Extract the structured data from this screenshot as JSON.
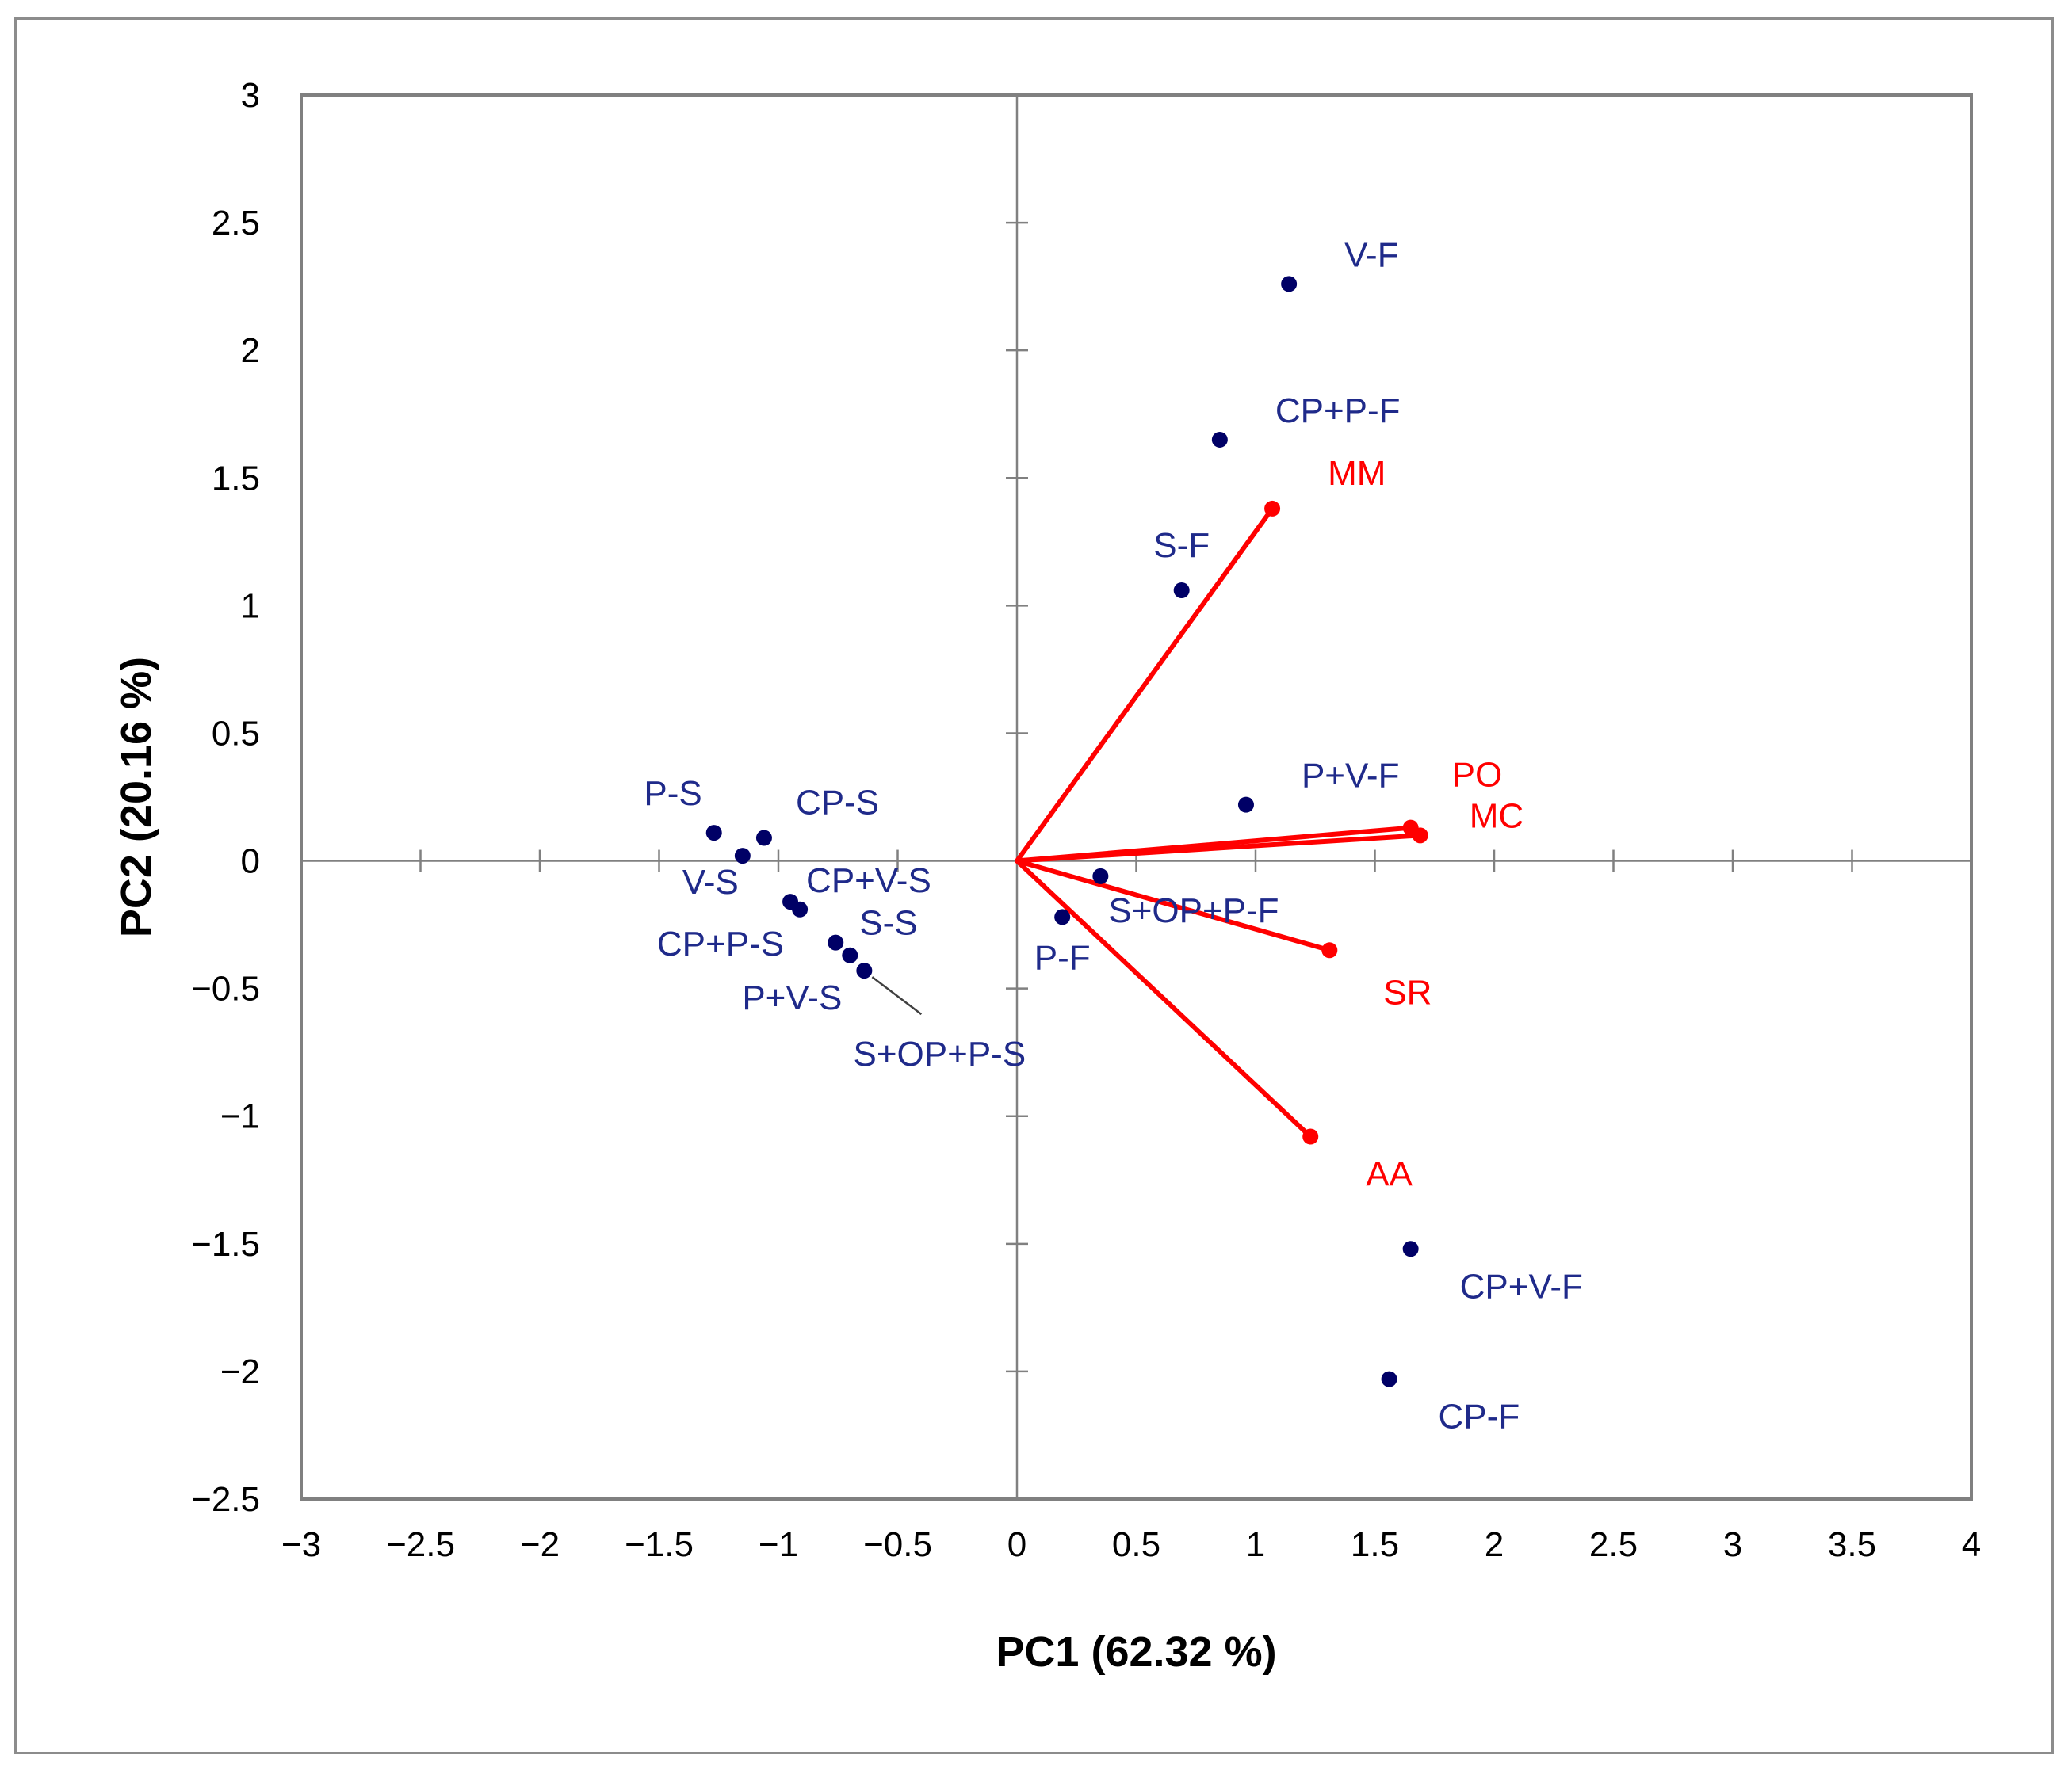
{
  "chart_data": {
    "type": "scatter",
    "subtype": "pca-biplot",
    "title": "",
    "xlabel": "PC1 (62.32 %)",
    "ylabel": "PC2 (20.16 %)",
    "xlim": [
      -3,
      4
    ],
    "ylim": [
      -2.5,
      3
    ],
    "xticks": [
      -3,
      -2.5,
      -2,
      -1.5,
      -1,
      -0.5,
      0,
      0.5,
      1,
      1.5,
      2,
      2.5,
      3,
      3.5,
      4
    ],
    "xtick_labels": [
      "−3",
      "−2.5",
      "−2",
      "−1.5",
      "−1",
      "−0.5",
      "0",
      "0.5",
      "1",
      "1.5",
      "2",
      "2.5",
      "3",
      "3.5",
      "4"
    ],
    "yticks": [
      -2.5,
      -2,
      -1.5,
      -1,
      -0.5,
      0,
      0.5,
      1,
      1.5,
      2,
      2.5,
      3
    ],
    "ytick_labels": [
      "−2.5",
      "−2",
      "−1.5",
      "−1",
      "−0.5",
      "0",
      "0.5",
      "1",
      "1.5",
      "2",
      "2.5",
      "3"
    ],
    "grid": false,
    "colors": {
      "points": "#000066",
      "point_labels": "#1f2a8a",
      "vectors": "#ff0000",
      "axes": "#808080",
      "frame": "#8c8c8c"
    },
    "points": [
      {
        "label": "V-F",
        "x": 1.14,
        "y": 2.26,
        "label_pos": "upper-right"
      },
      {
        "label": "CP+P-F",
        "x": 0.85,
        "y": 1.65,
        "label_pos": "upper-right"
      },
      {
        "label": "S-F",
        "x": 0.69,
        "y": 1.06,
        "label_pos": "above"
      },
      {
        "label": "P+V-F",
        "x": 0.96,
        "y": 0.22,
        "label_pos": "upper-right"
      },
      {
        "label": "S+OP+P-F",
        "x": 0.35,
        "y": -0.06,
        "label_pos": "below-right"
      },
      {
        "label": "P-F",
        "x": 0.19,
        "y": -0.22,
        "label_pos": "below"
      },
      {
        "label": "CP+V-F",
        "x": 1.65,
        "y": -1.52,
        "label_pos": "below-right"
      },
      {
        "label": "CP-F",
        "x": 1.56,
        "y": -2.03,
        "label_pos": "below-right"
      },
      {
        "label": "P-S",
        "x": -1.27,
        "y": 0.11,
        "label_pos": "upper-left"
      },
      {
        "label": "CP-S",
        "x": -1.06,
        "y": 0.09,
        "label_pos": "upper-right"
      },
      {
        "label": "V-S",
        "x": -1.15,
        "y": 0.02,
        "label_pos": "below-left"
      },
      {
        "label": "CP+V-S",
        "x": -0.95,
        "y": -0.16,
        "label_pos": "upper-right"
      },
      {
        "label": "CP+P-S",
        "x": -0.91,
        "y": -0.19,
        "label_pos": "below-left"
      },
      {
        "label": "S-S",
        "x": -0.76,
        "y": -0.32,
        "label_pos": "upper-right"
      },
      {
        "label": "P+V-S",
        "x": -0.7,
        "y": -0.37,
        "label_pos": "below-left"
      },
      {
        "label": "S+OP+P-S",
        "x": -0.64,
        "y": -0.43,
        "label_pos": "leader-below"
      }
    ],
    "vectors": [
      {
        "label": "MM",
        "x": 1.07,
        "y": 1.38
      },
      {
        "label": "PO",
        "x": 1.65,
        "y": 0.13
      },
      {
        "label": "MC",
        "x": 1.69,
        "y": 0.1
      },
      {
        "label": "SR",
        "x": 1.31,
        "y": -0.35
      },
      {
        "label": "AA",
        "x": 1.23,
        "y": -1.08
      }
    ]
  }
}
